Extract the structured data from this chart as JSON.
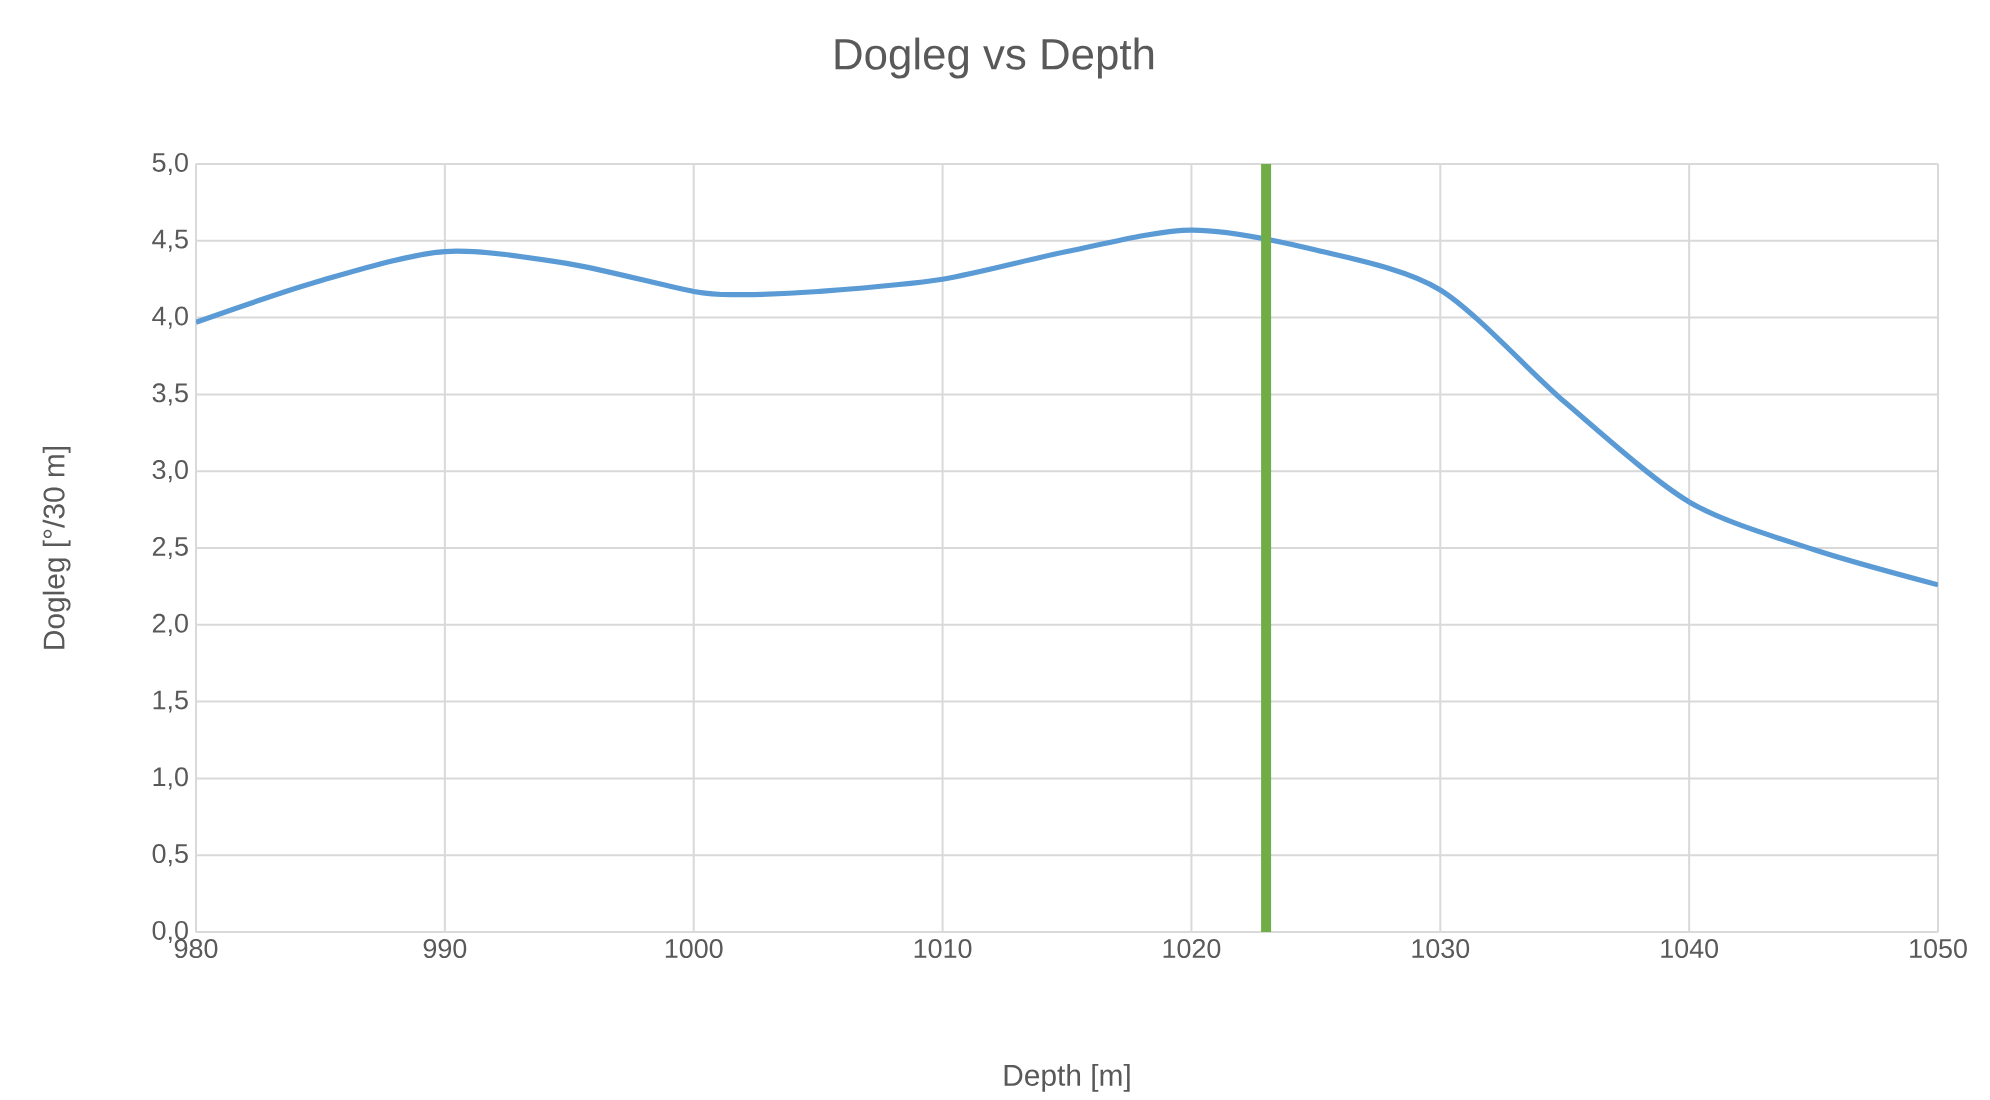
{
  "chart_data": {
    "type": "line",
    "title": "Dogleg vs Depth",
    "xlabel": "Depth [m]",
    "ylabel": "Dogleg [°/30 m]",
    "x": [
      980,
      985,
      990,
      995,
      1000,
      1002,
      1005,
      1010,
      1015,
      1020,
      1025,
      1030,
      1035,
      1040,
      1045,
      1050
    ],
    "series": [
      {
        "color": "#5b9bd5",
        "values": [
          3.97,
          4.24,
          4.43,
          4.35,
          4.17,
          4.15,
          4.17,
          4.25,
          4.43,
          4.57,
          4.44,
          4.18,
          3.45,
          2.8,
          2.49,
          2.26
        ]
      }
    ],
    "xlim": [
      980,
      1050
    ],
    "xticks": [
      980,
      990,
      1000,
      1010,
      1020,
      1030,
      1040,
      1050
    ],
    "ylim": [
      0,
      5
    ],
    "yticks": [
      {
        "value": 0,
        "label": "0,0"
      },
      {
        "value": 0.5,
        "label": "0,5"
      },
      {
        "value": 1,
        "label": "1,0"
      },
      {
        "value": 1.5,
        "label": "1,5"
      },
      {
        "value": 2,
        "label": "2,0"
      },
      {
        "value": 2.5,
        "label": "2,5"
      },
      {
        "value": 3,
        "label": "3,0"
      },
      {
        "value": 3.5,
        "label": "3,5"
      },
      {
        "value": 4,
        "label": "4,0"
      },
      {
        "value": 4.5,
        "label": "4,5"
      },
      {
        "value": 5,
        "label": "5,0"
      }
    ],
    "ref_lines": [
      {
        "axis": "x",
        "value": 1023,
        "color": "#70ad47"
      }
    ],
    "grid": true,
    "marker": "none",
    "line_style": "solid"
  }
}
